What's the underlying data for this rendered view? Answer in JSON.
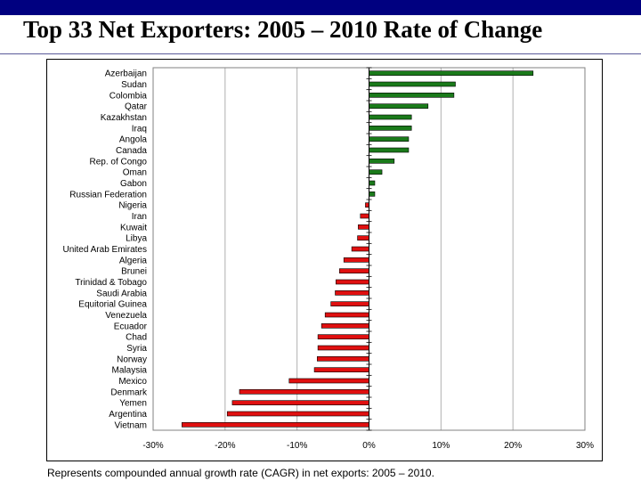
{
  "title": "Top 33 Net Exporters: 2005 – 2010 Rate of Change",
  "footnote": "Represents compounded annual growth rate (CAGR) in net exports: 2005 – 2010.",
  "colors": {
    "positive": "#1a7a1a",
    "negative": "#e01010",
    "header_bar": "#000080"
  },
  "chart_data": {
    "type": "bar",
    "orientation": "horizontal",
    "categories": [
      "Azerbaijan",
      "Sudan",
      "Colombia",
      "Qatar",
      "Kazakhstan",
      "Iraq",
      "Angola",
      "Canada",
      "Rep. of Congo",
      "Oman",
      "Gabon",
      "Russian Federation",
      "Nigeria",
      "Iran",
      "Kuwait",
      "Libya",
      "United Arab Emirates",
      "Algeria",
      "Brunei",
      "Trinidad & Tobago",
      "Saudi Arabia",
      "Equitorial Guinea",
      "Venezuela",
      "Ecuador",
      "Chad",
      "Syria",
      "Norway",
      "Malaysia",
      "Mexico",
      "Denmark",
      "Yemen",
      "Argentina",
      "Vietnam"
    ],
    "values": [
      22.8,
      12.0,
      11.8,
      8.2,
      5.9,
      5.9,
      5.5,
      5.5,
      3.5,
      1.8,
      0.8,
      0.8,
      -0.5,
      -1.2,
      -1.5,
      -1.6,
      -2.4,
      -3.5,
      -4.1,
      -4.6,
      -4.7,
      -5.3,
      -6.1,
      -6.6,
      -7.1,
      -7.1,
      -7.2,
      -7.6,
      -11.1,
      -18.0,
      -19.0,
      -19.7,
      -26.0
    ],
    "xlim": [
      -30,
      30
    ],
    "xticks": [
      "-30%",
      "-20%",
      "-10%",
      "0%",
      "10%",
      "20%",
      "30%"
    ],
    "grid": true
  }
}
